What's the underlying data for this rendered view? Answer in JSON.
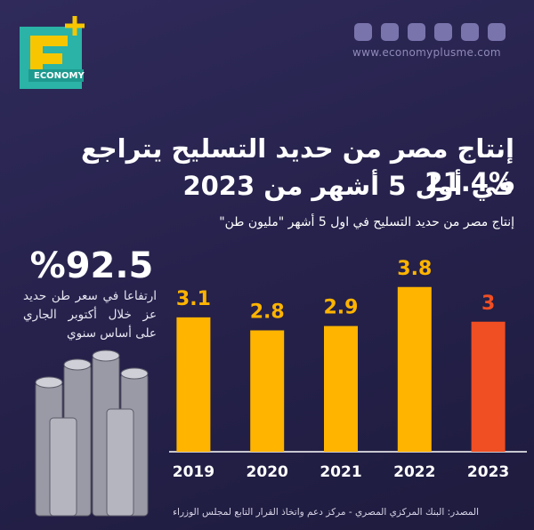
{
  "brand": {
    "logo_text": "ECONOMY",
    "website": "www.economyplusme.com"
  },
  "chart_data": {
    "type": "bar",
    "title": [
      "إنتاج مصر من حديد التسليح يتراجع %21.4",
      "في أول 5 أشهر من 2023"
    ],
    "subtitle": "إنتاج مصر من حديد التسليح في اول 5 أشهر \"مليون طن\"",
    "categories": [
      "2019",
      "2020",
      "2021",
      "2022",
      "2023"
    ],
    "values": [
      3.1,
      2.8,
      2.9,
      3.8,
      3
    ],
    "colors": [
      "#ffb400",
      "#ffb400",
      "#ffb400",
      "#ffb400",
      "#f04e23"
    ],
    "ylim": [
      0,
      4
    ],
    "annotation": {
      "headline": "%92.5",
      "text": "ارتفاعا في سعر طن حديد عز خلال أكتوبر الجاري على أساس سنوي"
    },
    "source": "المصدر: البنك المركزي المصري - مركز دعم واتخاذ القرار التابع لمجلس الوزراء"
  }
}
